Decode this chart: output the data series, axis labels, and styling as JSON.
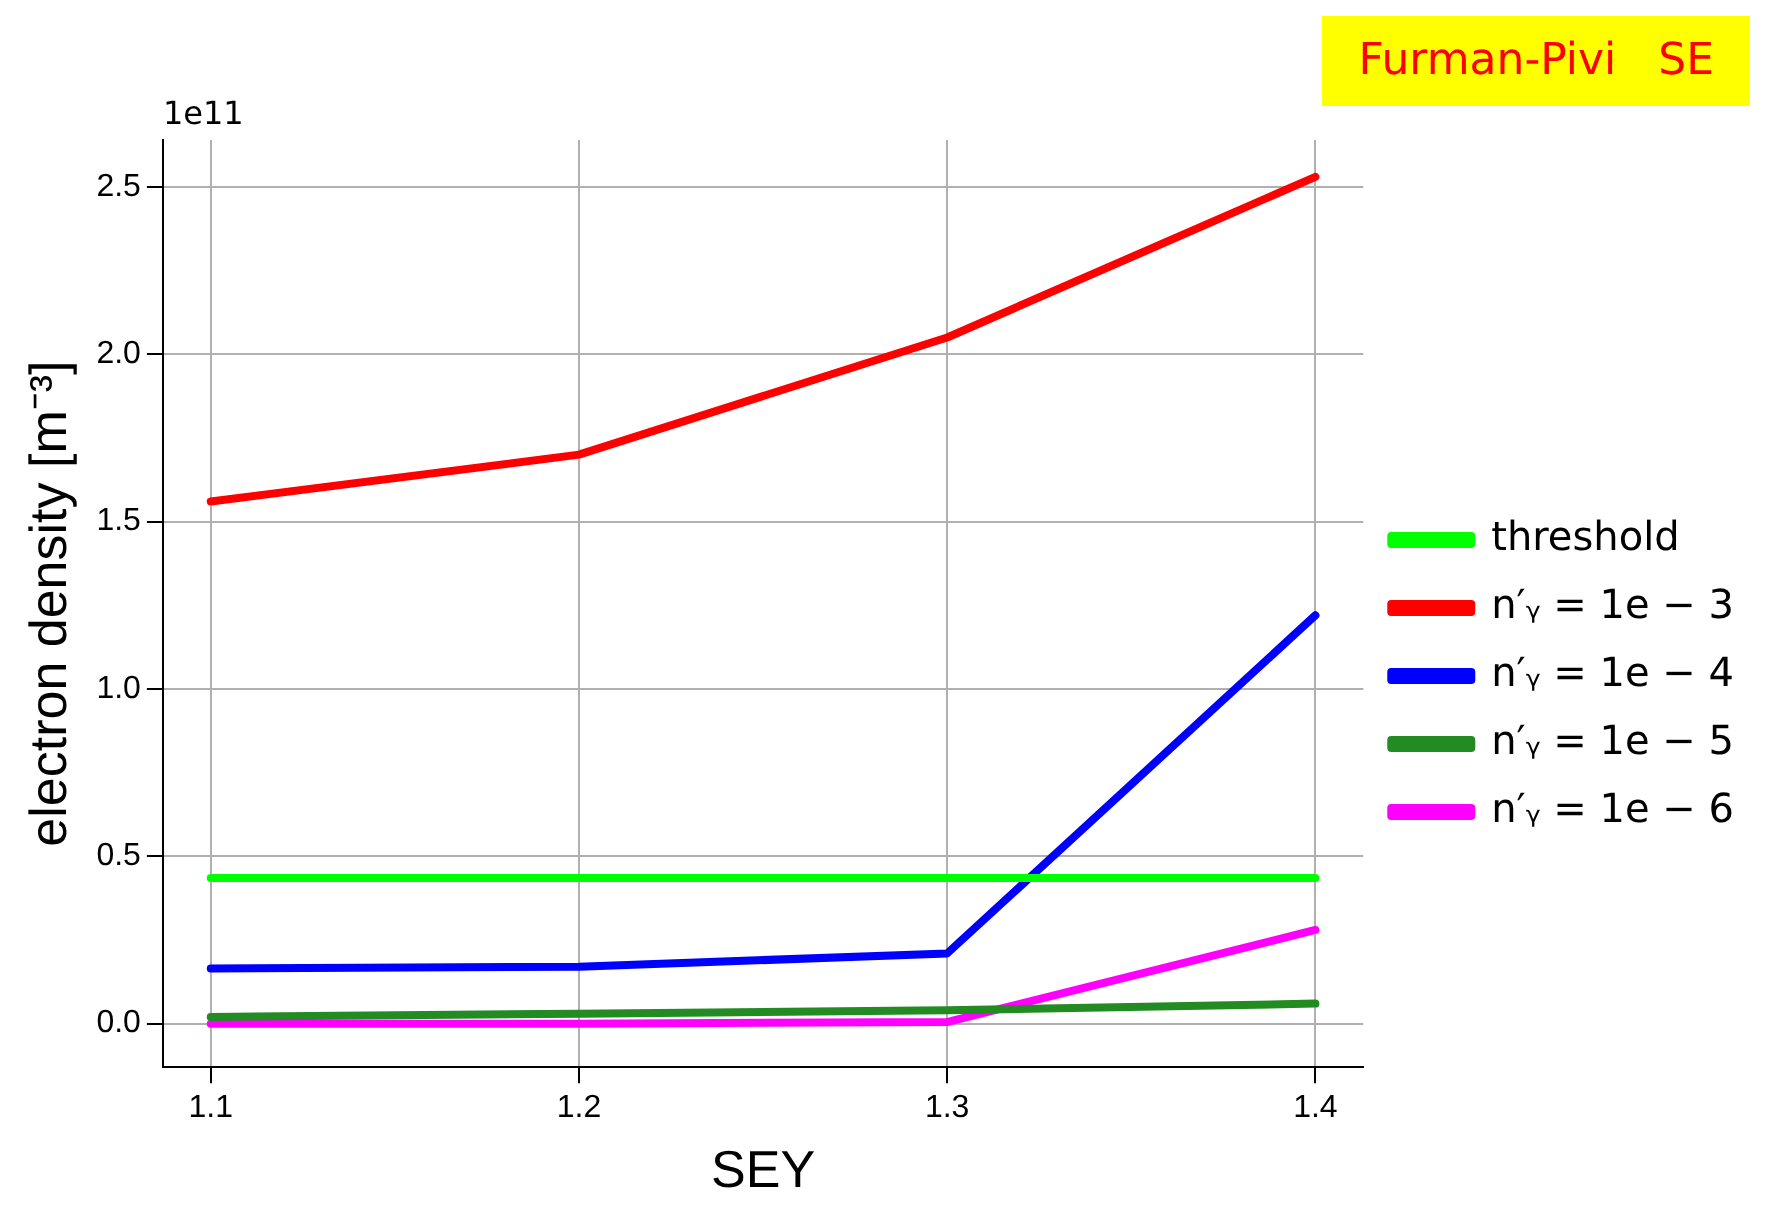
{
  "chart_data": {
    "type": "line",
    "xlabel": "SEY",
    "ylabel": "electron density [m⁻³]",
    "annotations": [
      "1e11",
      "Furman-Pivi   SE"
    ],
    "x": [
      1.1,
      1.2,
      1.3,
      1.4
    ],
    "xlim": [
      1.087,
      1.413
    ],
    "xticks": [
      1.1,
      1.2,
      1.3,
      1.4
    ],
    "ylim": [
      -0.13,
      2.64
    ],
    "yticks": [
      {
        "value": 0,
        "label": "0.0"
      },
      {
        "value": 0.5,
        "label": "0.5"
      },
      {
        "value": 1,
        "label": "1.0"
      },
      {
        "value": 1.5,
        "label": "1.5"
      },
      {
        "value": 2,
        "label": "2.0"
      },
      {
        "value": 2.5,
        "label": "2.5"
      }
    ],
    "grid": true,
    "legend": "right",
    "marker": "none",
    "line_style": "solid",
    "series": [
      {
        "name": "threshold",
        "color": "#00ff00",
        "values": [
          0.435,
          0.435,
          0.435,
          0.435
        ]
      },
      {
        "name": "n′ᵧ = 1e − 3",
        "color": "#ff0000",
        "values": [
          1.56,
          1.7,
          2.05,
          2.53
        ]
      },
      {
        "name": "n′ᵧ = 1e − 4",
        "color": "#0000ff",
        "values": [
          0.165,
          0.17,
          0.21,
          1.22
        ]
      },
      {
        "name": "n′ᵧ = 1e − 5",
        "color": "#228b22",
        "values": [
          0.02,
          0.03,
          0.04,
          0.06
        ]
      },
      {
        "name": "n′ᵧ = 1e − 6",
        "color": "#ff00ff",
        "values": [
          0.0,
          0.0,
          0.005,
          0.28
        ]
      }
    ]
  }
}
